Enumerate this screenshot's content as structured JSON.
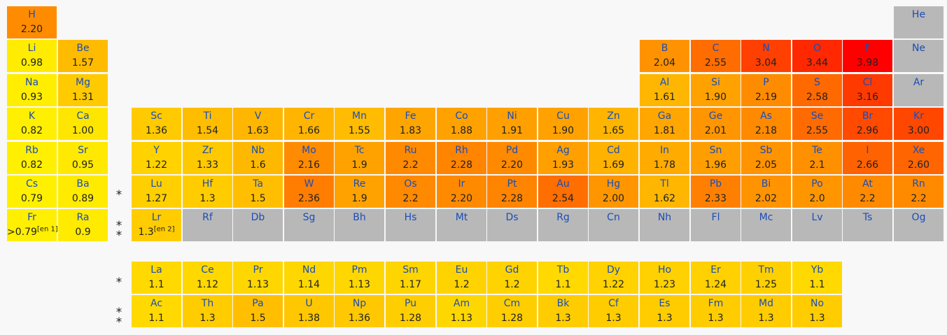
{
  "markers": {
    "single": "*",
    "double": "*\n*"
  },
  "elements": [
    {
      "symbol": "H",
      "en": "2.20",
      "color": "#ff8c00"
    },
    {
      "symbol": "He",
      "en": "",
      "color": "#b8b8b8"
    },
    {
      "symbol": "Li",
      "en": "0.98",
      "color": "#ffec00"
    },
    {
      "symbol": "Be",
      "en": "1.57",
      "color": "#ffbb00"
    },
    {
      "symbol": "B",
      "en": "2.04",
      "color": "#ff9200"
    },
    {
      "symbol": "C",
      "en": "2.55",
      "color": "#ff6d00"
    },
    {
      "symbol": "N",
      "en": "3.04",
      "color": "#ff4000"
    },
    {
      "symbol": "O",
      "en": "3.44",
      "color": "#ff2800"
    },
    {
      "symbol": "F",
      "en": "3.98",
      "color": "#ff0000"
    },
    {
      "symbol": "Ne",
      "en": "",
      "color": "#b8b8b8"
    },
    {
      "symbol": "Na",
      "en": "0.93",
      "color": "#ffee00"
    },
    {
      "symbol": "Mg",
      "en": "1.31",
      "color": "#ffcb00"
    },
    {
      "symbol": "Al",
      "en": "1.61",
      "color": "#ffb600"
    },
    {
      "symbol": "Si",
      "en": "1.90",
      "color": "#ffa200"
    },
    {
      "symbol": "P",
      "en": "2.19",
      "color": "#ff8c00"
    },
    {
      "symbol": "S",
      "en": "2.58",
      "color": "#ff6900"
    },
    {
      "symbol": "Cl",
      "en": "3.16",
      "color": "#ff3a00"
    },
    {
      "symbol": "Ar",
      "en": "",
      "color": "#b8b8b8"
    },
    {
      "symbol": "K",
      "en": "0.82",
      "color": "#ffef00"
    },
    {
      "symbol": "Ca",
      "en": "1.00",
      "color": "#ffe600"
    },
    {
      "symbol": "Sc",
      "en": "1.36",
      "color": "#ffca00"
    },
    {
      "symbol": "Ti",
      "en": "1.54",
      "color": "#ffbd00"
    },
    {
      "symbol": "V",
      "en": "1.63",
      "color": "#ffb600"
    },
    {
      "symbol": "Cr",
      "en": "1.66",
      "color": "#ffb400"
    },
    {
      "symbol": "Mn",
      "en": "1.55",
      "color": "#ffbc00"
    },
    {
      "symbol": "Fe",
      "en": "1.83",
      "color": "#ffa500"
    },
    {
      "symbol": "Co",
      "en": "1.88",
      "color": "#ffa200"
    },
    {
      "symbol": "Ni",
      "en": "1.91",
      "color": "#ffa000"
    },
    {
      "symbol": "Cu",
      "en": "1.90",
      "color": "#ffa200"
    },
    {
      "symbol": "Zn",
      "en": "1.65",
      "color": "#ffb500"
    },
    {
      "symbol": "Ga",
      "en": "1.81",
      "color": "#ffa700"
    },
    {
      "symbol": "Ge",
      "en": "2.01",
      "color": "#ff9500"
    },
    {
      "symbol": "As",
      "en": "2.18",
      "color": "#ff8a00"
    },
    {
      "symbol": "Se",
      "en": "2.55",
      "color": "#ff6b00"
    },
    {
      "symbol": "Br",
      "en": "2.96",
      "color": "#ff4a00"
    },
    {
      "symbol": "Kr",
      "en": "3.00",
      "color": "#ff4700"
    },
    {
      "symbol": "Rb",
      "en": "0.82",
      "color": "#ffef00"
    },
    {
      "symbol": "Sr",
      "en": "0.95",
      "color": "#ffe900"
    },
    {
      "symbol": "Y",
      "en": "1.22",
      "color": "#ffd200"
    },
    {
      "symbol": "Zr",
      "en": "1.33",
      "color": "#ffc900"
    },
    {
      "symbol": "Nb",
      "en": "1.6",
      "color": "#ffb800"
    },
    {
      "symbol": "Mo",
      "en": "2.16",
      "color": "#ff8c00"
    },
    {
      "symbol": "Tc",
      "en": "1.9",
      "color": "#ffa200"
    },
    {
      "symbol": "Ru",
      "en": "2.2",
      "color": "#ff8a00"
    },
    {
      "symbol": "Rh",
      "en": "2.28",
      "color": "#ff8400"
    },
    {
      "symbol": "Pd",
      "en": "2.20",
      "color": "#ff8a00"
    },
    {
      "symbol": "Ag",
      "en": "1.93",
      "color": "#ffa000"
    },
    {
      "symbol": "Cd",
      "en": "1.69",
      "color": "#ffb200"
    },
    {
      "symbol": "In",
      "en": "1.78",
      "color": "#ffab00"
    },
    {
      "symbol": "Sn",
      "en": "1.96",
      "color": "#ff9e00"
    },
    {
      "symbol": "Sb",
      "en": "2.05",
      "color": "#ff9300"
    },
    {
      "symbol": "Te",
      "en": "2.1",
      "color": "#ff9000"
    },
    {
      "symbol": "I",
      "en": "2.66",
      "color": "#ff6200"
    },
    {
      "symbol": "Xe",
      "en": "2.60",
      "color": "#ff6500"
    },
    {
      "symbol": "Cs",
      "en": "0.79",
      "color": "#fff000"
    },
    {
      "symbol": "Ba",
      "en": "0.89",
      "color": "#ffeb00"
    },
    {
      "symbol": "Lu",
      "en": "1.27",
      "color": "#ffcf00"
    },
    {
      "symbol": "Hf",
      "en": "1.3",
      "color": "#ffcc00"
    },
    {
      "symbol": "Ta",
      "en": "1.5",
      "color": "#ffbf00"
    },
    {
      "symbol": "W",
      "en": "2.36",
      "color": "#ff7d00"
    },
    {
      "symbol": "Re",
      "en": "1.9",
      "color": "#ffa200"
    },
    {
      "symbol": "Os",
      "en": "2.2",
      "color": "#ff8a00"
    },
    {
      "symbol": "Ir",
      "en": "2.20",
      "color": "#ff8a00"
    },
    {
      "symbol": "Pt",
      "en": "2.28",
      "color": "#ff8400"
    },
    {
      "symbol": "Au",
      "en": "2.54",
      "color": "#ff6e00"
    },
    {
      "symbol": "Hg",
      "en": "2.00",
      "color": "#ff9600"
    },
    {
      "symbol": "Tl",
      "en": "1.62",
      "color": "#ffb600"
    },
    {
      "symbol": "Pb",
      "en": "2.33",
      "color": "#ff8000"
    },
    {
      "symbol": "Bi",
      "en": "2.02",
      "color": "#ff9400"
    },
    {
      "symbol": "Po",
      "en": "2.0",
      "color": "#ff9600"
    },
    {
      "symbol": "At",
      "en": "2.2",
      "color": "#ff8a00"
    },
    {
      "symbol": "Rn",
      "en": "2.2",
      "color": "#ff8a00"
    },
    {
      "symbol": "Fr",
      "en": ">0.79",
      "note": "[en 1]",
      "color": "#ffef00"
    },
    {
      "symbol": "Ra",
      "en": "0.9",
      "color": "#ffeb00"
    },
    {
      "symbol": "Lr",
      "en": "1.3",
      "note": "[en 2]",
      "color": "#ffcc00"
    },
    {
      "symbol": "Rf",
      "en": "",
      "color": "#b8b8b8"
    },
    {
      "symbol": "Db",
      "en": "",
      "color": "#b8b8b8"
    },
    {
      "symbol": "Sg",
      "en": "",
      "color": "#b8b8b8"
    },
    {
      "symbol": "Bh",
      "en": "",
      "color": "#b8b8b8"
    },
    {
      "symbol": "Hs",
      "en": "",
      "color": "#b8b8b8"
    },
    {
      "symbol": "Mt",
      "en": "",
      "color": "#b8b8b8"
    },
    {
      "symbol": "Ds",
      "en": "",
      "color": "#b8b8b8"
    },
    {
      "symbol": "Rg",
      "en": "",
      "color": "#b8b8b8"
    },
    {
      "symbol": "Cn",
      "en": "",
      "color": "#b8b8b8"
    },
    {
      "symbol": "Nh",
      "en": "",
      "color": "#b8b8b8"
    },
    {
      "symbol": "Fl",
      "en": "",
      "color": "#b8b8b8"
    },
    {
      "symbol": "Mc",
      "en": "",
      "color": "#b8b8b8"
    },
    {
      "symbol": "Lv",
      "en": "",
      "color": "#b8b8b8"
    },
    {
      "symbol": "Ts",
      "en": "",
      "color": "#b8b8b8"
    },
    {
      "symbol": "Og",
      "en": "",
      "color": "#b8b8b8"
    },
    {
      "symbol": "La",
      "en": "1.1",
      "color": "#ffd900"
    },
    {
      "symbol": "Ce",
      "en": "1.12",
      "color": "#ffd800"
    },
    {
      "symbol": "Pr",
      "en": "1.13",
      "color": "#ffd700"
    },
    {
      "symbol": "Nd",
      "en": "1.14",
      "color": "#ffd700"
    },
    {
      "symbol": "Pm",
      "en": "1.13",
      "color": "#ffd700"
    },
    {
      "symbol": "Sm",
      "en": "1.17",
      "color": "#ffd500"
    },
    {
      "symbol": "Eu",
      "en": "1.2",
      "color": "#ffd300"
    },
    {
      "symbol": "Gd",
      "en": "1.2",
      "color": "#ffd300"
    },
    {
      "symbol": "Tb",
      "en": "1.1",
      "color": "#ffd900"
    },
    {
      "symbol": "Dy",
      "en": "1.22",
      "color": "#ffd200"
    },
    {
      "symbol": "Ho",
      "en": "1.23",
      "color": "#ffd100"
    },
    {
      "symbol": "Er",
      "en": "1.24",
      "color": "#ffd100"
    },
    {
      "symbol": "Tm",
      "en": "1.25",
      "color": "#ffd000"
    },
    {
      "symbol": "Yb",
      "en": "1.1",
      "color": "#ffd900"
    },
    {
      "symbol": "Ac",
      "en": "1.1",
      "color": "#ffd900"
    },
    {
      "symbol": "Th",
      "en": "1.3",
      "color": "#ffcc00"
    },
    {
      "symbol": "Pa",
      "en": "1.5",
      "color": "#ffbf00"
    },
    {
      "symbol": "U",
      "en": "1.38",
      "color": "#ffc700"
    },
    {
      "symbol": "Np",
      "en": "1.36",
      "color": "#ffc800"
    },
    {
      "symbol": "Pu",
      "en": "1.28",
      "color": "#ffce00"
    },
    {
      "symbol": "Am",
      "en": "1.13",
      "color": "#ffd700"
    },
    {
      "symbol": "Cm",
      "en": "1.28",
      "color": "#ffce00"
    },
    {
      "symbol": "Bk",
      "en": "1.3",
      "color": "#ffcc00"
    },
    {
      "symbol": "Cf",
      "en": "1.3",
      "color": "#ffcc00"
    },
    {
      "symbol": "Es",
      "en": "1.3",
      "color": "#ffcc00"
    },
    {
      "symbol": "Fm",
      "en": "1.3",
      "color": "#ffcc00"
    },
    {
      "symbol": "Md",
      "en": "1.3",
      "color": "#ffcc00"
    },
    {
      "symbol": "No",
      "en": "1.3",
      "color": "#ffcc00"
    }
  ]
}
